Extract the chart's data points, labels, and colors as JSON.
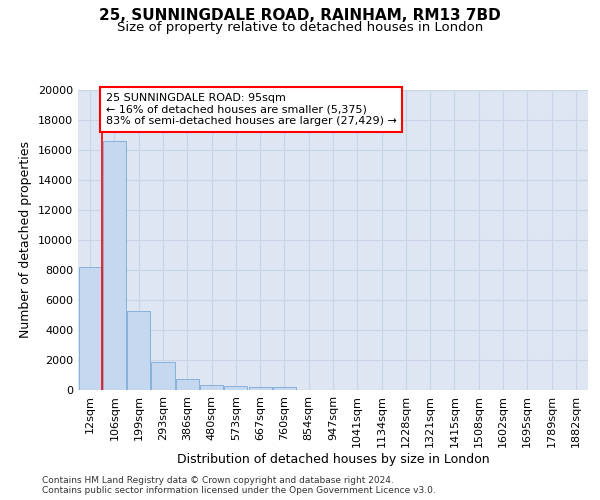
{
  "title_line1": "25, SUNNINGDALE ROAD, RAINHAM, RM13 7BD",
  "title_line2": "Size of property relative to detached houses in London",
  "xlabel": "Distribution of detached houses by size in London",
  "ylabel": "Number of detached properties",
  "categories": [
    "12sqm",
    "106sqm",
    "199sqm",
    "293sqm",
    "386sqm",
    "480sqm",
    "573sqm",
    "667sqm",
    "760sqm",
    "854sqm",
    "947sqm",
    "1041sqm",
    "1134sqm",
    "1228sqm",
    "1321sqm",
    "1415sqm",
    "1508sqm",
    "1602sqm",
    "1695sqm",
    "1789sqm",
    "1882sqm"
  ],
  "values": [
    8200,
    16600,
    5300,
    1850,
    750,
    320,
    270,
    200,
    170,
    0,
    0,
    0,
    0,
    0,
    0,
    0,
    0,
    0,
    0,
    0,
    0
  ],
  "bar_color": "#c5d8f0",
  "bar_edgecolor": "#7aaad4",
  "vline_color": "red",
  "vline_x": 0.5,
  "annotation_text": "25 SUNNINGDALE ROAD: 95sqm\n← 16% of detached houses are smaller (5,375)\n83% of semi-detached houses are larger (27,429) →",
  "annotation_box_facecolor": "white",
  "annotation_box_edgecolor": "red",
  "ylim": [
    0,
    20000
  ],
  "yticks": [
    0,
    2000,
    4000,
    6000,
    8000,
    10000,
    12000,
    14000,
    16000,
    18000,
    20000
  ],
  "grid_color": "#c8d4e8",
  "bg_color": "#dde6f2",
  "footer": "Contains HM Land Registry data © Crown copyright and database right 2024.\nContains public sector information licensed under the Open Government Licence v3.0.",
  "title_fontsize": 11,
  "subtitle_fontsize": 9.5,
  "xlabel_fontsize": 9,
  "ylabel_fontsize": 9,
  "tick_fontsize": 8,
  "annotation_fontsize": 8
}
